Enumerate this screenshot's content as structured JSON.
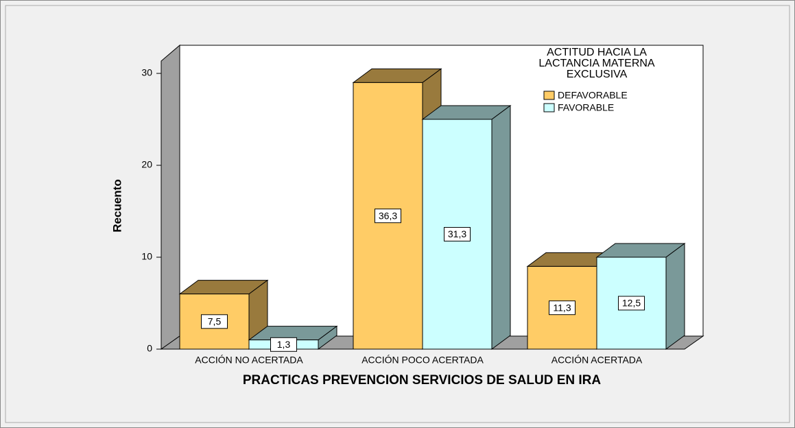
{
  "chart_data": {
    "type": "bar3d",
    "y_label": "Recuento",
    "x_label": "PRÁCTICAS PREVENCIÓN SERVICIOS DE SALUD EN IRA",
    "legend_title": "ACTITUD HACIA LA LACTANCIA MATERNA EXCLUSIVA",
    "categories": [
      "ACCIÓN NO ACERTADA",
      "ACCIÓN POCO ACERTADA",
      "ACCIÓN ACERTADA"
    ],
    "series": [
      {
        "name": "DEFAVORABLE",
        "color": "#ffcc66",
        "values": [
          6,
          29,
          9
        ],
        "value_labels": [
          "7,5",
          "36,3",
          "11,3"
        ]
      },
      {
        "name": "FAVORABLE",
        "color": "#ccffff",
        "values": [
          1,
          25,
          10
        ],
        "value_labels": [
          "1,3",
          "31,3",
          "12,5"
        ]
      }
    ],
    "ylim": [
      0,
      30
    ],
    "yticks": [
      0,
      10,
      20,
      30
    ]
  }
}
